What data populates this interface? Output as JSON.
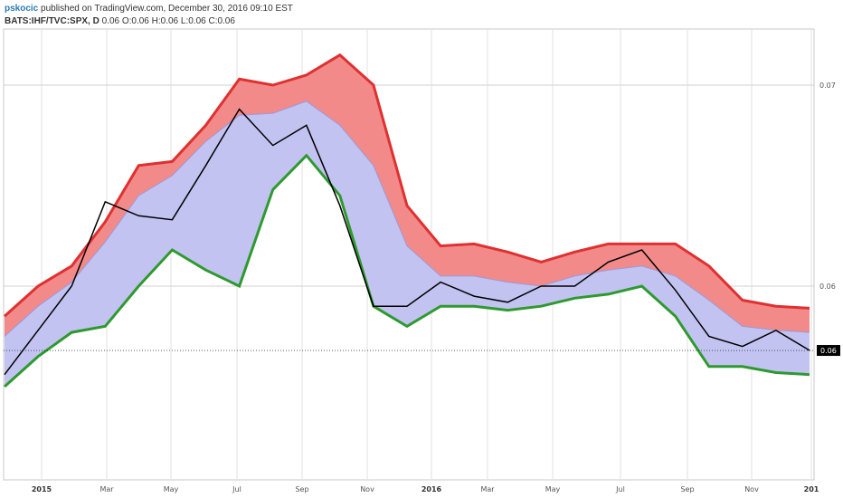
{
  "header": {
    "author": "pskocic",
    "published": " published on TradingView.com, December 30, 2016 09:10 EST",
    "symbol": "BATS:IHF/TVC:SPX, D",
    "ohlc": " 0.06 O:0.06 H:0.06 L:0.06 C:0.06"
  },
  "colors": {
    "upper_band": "#e03030",
    "upper_fill": "#f28a8a",
    "mid_fill": "#c3c3f2",
    "lower_fill": "#6cb56c",
    "lower_band": "#2e9a2e",
    "price": "#000000",
    "last_price_bg": "#000000"
  },
  "chart_data": {
    "type": "line",
    "title": "",
    "xlabel": "",
    "ylabel": "",
    "x_ticks": [
      "2015",
      "Mar",
      "May",
      "Jul",
      "Sep",
      "Nov",
      "2016",
      "Mar",
      "May",
      "Jul",
      "Sep",
      "Nov",
      "201"
    ],
    "y_ticks": [
      "0.07",
      "0.06"
    ],
    "last_price_label": "0.06",
    "x": [
      "2014-12",
      "2015-01",
      "2015-02",
      "2015-03",
      "2015-04",
      "2015-05",
      "2015-06",
      "2015-07",
      "2015-08",
      "2015-09",
      "2015-10",
      "2015-11",
      "2015-12",
      "2016-01",
      "2016-02",
      "2016-03",
      "2016-04",
      "2016-05",
      "2016-06",
      "2016-07",
      "2016-08",
      "2016-09",
      "2016-10",
      "2016-11",
      "2016-12"
    ],
    "series": [
      {
        "role": "upper_band",
        "values": [
          0.0585,
          0.06,
          0.061,
          0.0632,
          0.066,
          0.0662,
          0.068,
          0.0703,
          0.07,
          0.0705,
          0.0715,
          0.07,
          0.064,
          0.062,
          0.0621,
          0.0617,
          0.0612,
          0.0617,
          0.0621,
          0.0621,
          0.0621,
          0.061,
          0.0593,
          0.059,
          0.0589
        ]
      },
      {
        "role": "middle_band",
        "values": [
          0.0575,
          0.059,
          0.0602,
          0.0622,
          0.0645,
          0.0655,
          0.0672,
          0.0685,
          0.0686,
          0.0692,
          0.068,
          0.066,
          0.062,
          0.0605,
          0.0605,
          0.0602,
          0.06,
          0.0605,
          0.0608,
          0.061,
          0.0605,
          0.0593,
          0.058,
          0.0578,
          0.0577
        ]
      },
      {
        "role": "lower_band",
        "values": [
          0.055,
          0.0565,
          0.0577,
          0.058,
          0.06,
          0.0618,
          0.0608,
          0.06,
          0.0648,
          0.0665,
          0.0645,
          0.059,
          0.058,
          0.059,
          0.059,
          0.0588,
          0.059,
          0.0594,
          0.0596,
          0.06,
          0.0585,
          0.056,
          0.056,
          0.0557,
          0.0556
        ]
      },
      {
        "role": "price",
        "values": [
          0.0556,
          0.0578,
          0.06,
          0.0642,
          0.0635,
          0.0633,
          0.066,
          0.0688,
          0.067,
          0.068,
          0.064,
          0.059,
          0.059,
          0.0602,
          0.0595,
          0.0592,
          0.06,
          0.06,
          0.0612,
          0.0618,
          0.0598,
          0.0575,
          0.057,
          0.0578,
          0.0568
        ]
      }
    ],
    "grid": true,
    "legend": "none"
  }
}
